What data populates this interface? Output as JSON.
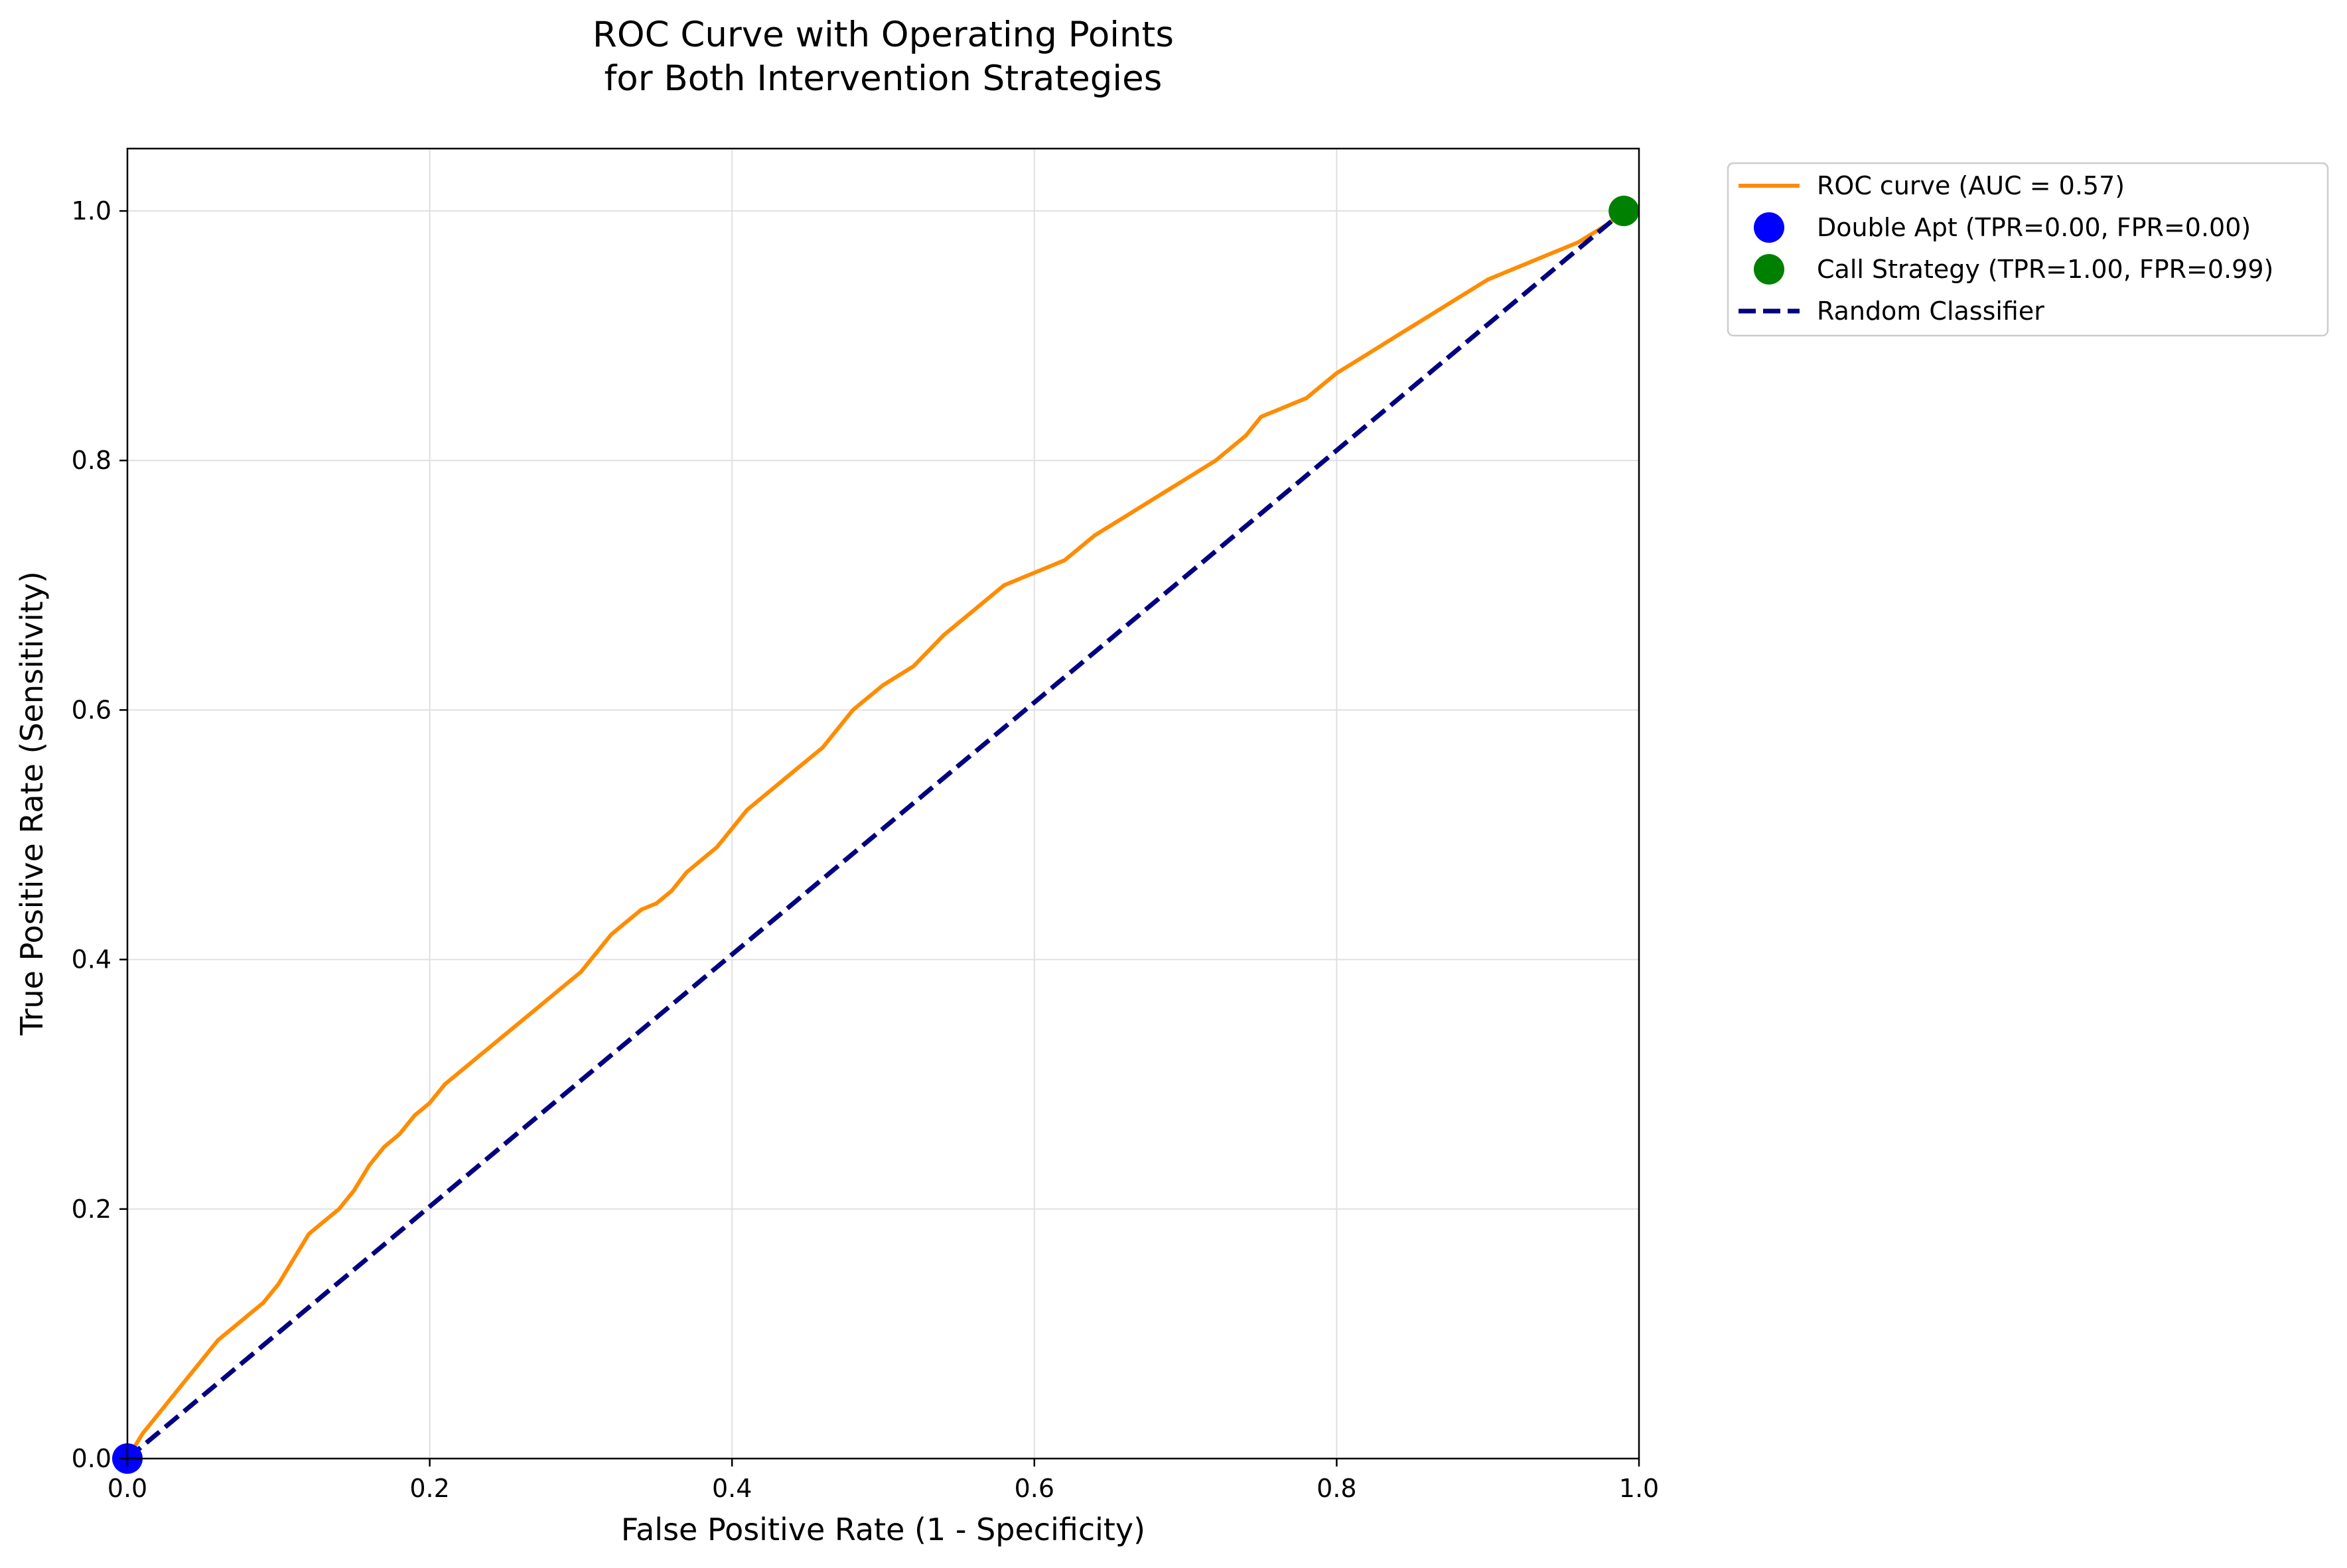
{
  "chart_data": {
    "type": "line",
    "title": [
      "ROC Curve with Operating Points",
      "for Both Intervention Strategies"
    ],
    "xlabel": "False Positive Rate (1 - Specificity)",
    "ylabel": "True Positive Rate (Sensitivity)",
    "xlim": [
      0.0,
      1.0
    ],
    "ylim": [
      0.0,
      1.05
    ],
    "xticks": [
      0.0,
      0.2,
      0.4,
      0.6,
      0.8,
      1.0
    ],
    "yticks": [
      0.0,
      0.2,
      0.4,
      0.6,
      0.8,
      1.0
    ],
    "xtick_labels": [
      "0.0",
      "0.2",
      "0.4",
      "0.6",
      "0.8",
      "1.0"
    ],
    "ytick_labels": [
      "0.0",
      "0.2",
      "0.4",
      "0.6",
      "0.8",
      "1.0"
    ],
    "grid": true,
    "legend_position": "outside-top-right",
    "series": [
      {
        "name": "ROC curve (AUC = 0.57)",
        "kind": "line",
        "color": "#ff8c00",
        "style": "solid",
        "x": [
          0.0,
          0.01,
          0.02,
          0.03,
          0.04,
          0.05,
          0.06,
          0.07,
          0.08,
          0.09,
          0.1,
          0.11,
          0.12,
          0.13,
          0.14,
          0.15,
          0.16,
          0.17,
          0.18,
          0.19,
          0.2,
          0.21,
          0.22,
          0.23,
          0.24,
          0.25,
          0.26,
          0.27,
          0.28,
          0.29,
          0.3,
          0.31,
          0.32,
          0.33,
          0.34,
          0.35,
          0.36,
          0.37,
          0.38,
          0.39,
          0.4,
          0.41,
          0.42,
          0.43,
          0.44,
          0.45,
          0.46,
          0.47,
          0.48,
          0.49,
          0.5,
          0.52,
          0.54,
          0.56,
          0.58,
          0.6,
          0.62,
          0.64,
          0.66,
          0.68,
          0.7,
          0.72,
          0.74,
          0.75,
          0.76,
          0.78,
          0.8,
          0.82,
          0.84,
          0.86,
          0.88,
          0.9,
          0.92,
          0.94,
          0.96,
          0.98,
          0.99
        ],
        "y": [
          0.0,
          0.02,
          0.035,
          0.05,
          0.065,
          0.08,
          0.095,
          0.105,
          0.115,
          0.125,
          0.14,
          0.16,
          0.18,
          0.19,
          0.2,
          0.215,
          0.235,
          0.25,
          0.26,
          0.275,
          0.285,
          0.3,
          0.31,
          0.32,
          0.33,
          0.34,
          0.35,
          0.36,
          0.37,
          0.38,
          0.39,
          0.405,
          0.42,
          0.43,
          0.44,
          0.445,
          0.455,
          0.47,
          0.48,
          0.49,
          0.505,
          0.52,
          0.53,
          0.54,
          0.55,
          0.56,
          0.57,
          0.585,
          0.6,
          0.61,
          0.62,
          0.635,
          0.66,
          0.68,
          0.7,
          0.71,
          0.72,
          0.74,
          0.755,
          0.77,
          0.785,
          0.8,
          0.82,
          0.835,
          0.84,
          0.85,
          0.87,
          0.885,
          0.9,
          0.915,
          0.93,
          0.945,
          0.955,
          0.965,
          0.975,
          0.99,
          1.0
        ]
      },
      {
        "name": "Double Apt (TPR=0.00, FPR=0.00)",
        "kind": "point",
        "color": "#0000ff",
        "x": [
          0.0
        ],
        "y": [
          0.0
        ]
      },
      {
        "name": "Call Strategy (TPR=1.00, FPR=0.99)",
        "kind": "point",
        "color": "#008000",
        "x": [
          0.99
        ],
        "y": [
          1.0
        ]
      },
      {
        "name": "Random Classifier",
        "kind": "line",
        "color": "#000080",
        "style": "dashed",
        "x": [
          0.0,
          0.99
        ],
        "y": [
          0.0,
          1.0
        ]
      }
    ]
  }
}
